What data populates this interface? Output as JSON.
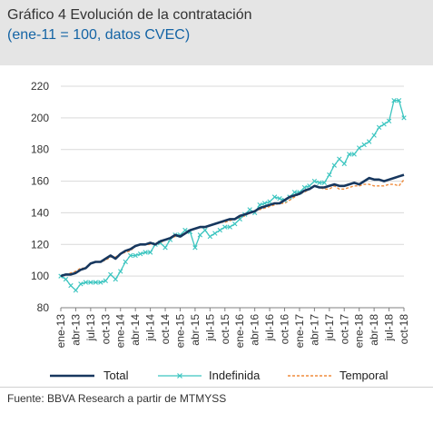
{
  "header": {
    "title": "Gráfico 4 Evolución de la contratación",
    "subtitle": "(ene-11 = 100, datos CVEC)"
  },
  "source": "Fuente: BBVA Research a partir de MTMYSS",
  "chart_data": {
    "type": "line",
    "title": "Gráfico 4 Evolución de la contratación",
    "subtitle": "(ene-11 = 100, datos CVEC)",
    "ylim": [
      80,
      220
    ],
    "yticks": [
      80,
      100,
      120,
      140,
      160,
      180,
      200,
      220
    ],
    "grid": true,
    "legend_position": "bottom",
    "x_tick_labels": [
      "ene-13",
      "abr-13",
      "jul-13",
      "oct-13",
      "ene-14",
      "abr-14",
      "jul-14",
      "oct-14",
      "ene-15",
      "abr-15",
      "jul-15",
      "oct-15",
      "ene-16",
      "abr-16",
      "jul-16",
      "oct-16",
      "ene-17",
      "abr-17",
      "jul-17",
      "oct-17",
      "ene-18",
      "abr-18",
      "jul-18",
      "oct-18"
    ],
    "x": [
      "ene-13",
      "feb-13",
      "mar-13",
      "abr-13",
      "may-13",
      "jun-13",
      "jul-13",
      "ago-13",
      "sep-13",
      "oct-13",
      "nov-13",
      "dic-13",
      "ene-14",
      "feb-14",
      "mar-14",
      "abr-14",
      "may-14",
      "jun-14",
      "jul-14",
      "ago-14",
      "sep-14",
      "oct-14",
      "nov-14",
      "dic-14",
      "ene-15",
      "feb-15",
      "mar-15",
      "abr-15",
      "may-15",
      "jun-15",
      "jul-15",
      "ago-15",
      "sep-15",
      "oct-15",
      "nov-15",
      "dic-15",
      "ene-16",
      "feb-16",
      "mar-16",
      "abr-16",
      "may-16",
      "jun-16",
      "jul-16",
      "ago-16",
      "sep-16",
      "oct-16",
      "nov-16",
      "dic-16",
      "ene-17",
      "feb-17",
      "mar-17",
      "abr-17",
      "may-17",
      "jun-17",
      "jul-17",
      "ago-17",
      "sep-17",
      "oct-17",
      "nov-17",
      "dic-17",
      "ene-18",
      "feb-18",
      "mar-18",
      "abr-18",
      "may-18",
      "jun-18",
      "jul-18",
      "ago-18",
      "sep-18",
      "oct-18"
    ],
    "series": [
      {
        "name": "Total",
        "color": "#17375e",
        "style": "solid",
        "values": [
          100,
          101,
          101,
          102,
          104,
          105,
          108,
          109,
          109,
          111,
          113,
          111,
          114,
          116,
          117,
          119,
          120,
          120,
          121,
          120,
          122,
          123,
          124,
          126,
          125,
          127,
          129,
          130,
          131,
          131,
          132,
          133,
          134,
          135,
          136,
          136,
          138,
          139,
          140,
          141,
          143,
          144,
          145,
          146,
          146,
          148,
          150,
          151,
          152,
          154,
          155,
          157,
          156,
          156,
          157,
          158,
          157,
          157,
          158,
          159,
          158,
          160,
          162,
          161,
          161,
          160,
          161,
          162,
          163,
          164
        ]
      },
      {
        "name": "Indefinida",
        "color": "#3cc5c0",
        "style": "solid-x",
        "values": [
          100,
          98,
          94,
          91,
          95,
          96,
          96,
          96,
          96,
          97,
          101,
          98,
          103,
          109,
          113,
          113,
          114,
          115,
          115,
          120,
          121,
          118,
          123,
          126,
          126,
          129,
          128,
          118,
          126,
          129,
          125,
          127,
          129,
          131,
          131,
          133,
          136,
          139,
          142,
          140,
          145,
          146,
          147,
          150,
          149,
          148,
          150,
          153,
          153,
          156,
          157,
          160,
          159,
          159,
          164,
          170,
          174,
          171,
          177,
          177,
          181,
          183,
          185,
          189,
          194,
          196,
          198,
          211,
          211,
          200
        ]
      },
      {
        "name": "Temporal",
        "color": "#f08c3c",
        "style": "dashed",
        "values": [
          100,
          101,
          102,
          103,
          105,
          105,
          108,
          109,
          109,
          110,
          112,
          112,
          114,
          115,
          116,
          119,
          120,
          120,
          120,
          121,
          121,
          123,
          124,
          125,
          126,
          127,
          129,
          130,
          131,
          131,
          132,
          133,
          134,
          134,
          135,
          136,
          137,
          138,
          140,
          141,
          142,
          143,
          144,
          145,
          146,
          146,
          148,
          150,
          152,
          153,
          155,
          157,
          156,
          155,
          155,
          157,
          155,
          155,
          156,
          157,
          157,
          158,
          158,
          157,
          157,
          157,
          158,
          158,
          157,
          161
        ]
      }
    ]
  }
}
